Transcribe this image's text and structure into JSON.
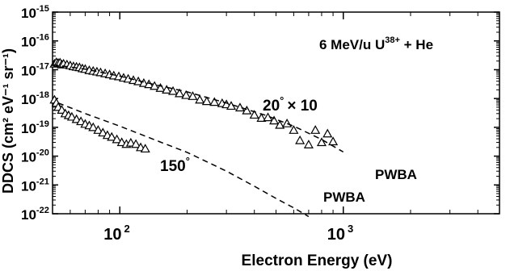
{
  "chart_data": {
    "type": "scatter",
    "title": "",
    "xlabel": "Electron Energy (eV)",
    "ylabel": "DDCS (cm² eV⁻¹ sr⁻¹)",
    "x_scale": "log",
    "y_scale": "log",
    "xlim": [
      50,
      5000
    ],
    "ylim": [
      1e-22,
      1e-15
    ],
    "x_ticks": [
      {
        "value": 100,
        "base": "10",
        "exp": "2"
      },
      {
        "value": 1000,
        "base": "10",
        "exp": "3"
      }
    ],
    "y_ticks": [
      {
        "value": 1e-15,
        "base": "10",
        "exp": "-15"
      },
      {
        "value": 1e-16,
        "base": "10",
        "exp": "-16"
      },
      {
        "value": 1e-17,
        "base": "10",
        "exp": "-17"
      },
      {
        "value": 1e-18,
        "base": "10",
        "exp": "-18"
      },
      {
        "value": 1e-19,
        "base": "10",
        "exp": "-19"
      },
      {
        "value": 1e-20,
        "base": "10",
        "exp": "-20"
      },
      {
        "value": 1e-21,
        "base": "10",
        "exp": "-21"
      },
      {
        "value": 1e-22,
        "base": "10",
        "exp": "-22"
      }
    ],
    "annotations": {
      "system_prefix": "6 MeV/u U",
      "system_charge": "38+",
      "system_suffix": " + He",
      "label_20": "20",
      "label_20_suffix": "× 10",
      "label_150": "150",
      "degree_mark": "°",
      "pwba_upper": "PWBA",
      "pwba_lower": "PWBA"
    },
    "series": [
      {
        "marker": "triangle",
        "x": [
          51,
          52,
          53,
          54,
          55,
          56,
          58,
          60,
          62,
          64,
          66,
          68,
          70,
          73,
          76,
          79,
          82,
          86,
          90,
          94,
          99,
          104,
          109,
          115,
          121,
          128,
          135,
          143,
          152,
          162,
          173,
          185,
          198,
          212,
          228,
          245,
          265,
          287,
          300,
          315,
          345,
          370,
          400,
          430,
          460,
          490,
          520,
          560,
          600,
          640,
          700,
          750,
          800,
          850,
          900
        ],
        "y": [
          1.6e-17,
          1.8e-17,
          1.7e-17,
          1.75e-17,
          1.5e-17,
          1.6e-17,
          1.5e-17,
          1.4e-17,
          1.3e-17,
          1.25e-17,
          1.2e-17,
          1.1e-17,
          1.05e-17,
          9.5e-18,
          9e-18,
          8.5e-18,
          8e-18,
          7.4e-18,
          6.8e-18,
          6.2e-18,
          5.8e-18,
          5.2e-18,
          4.8e-18,
          4.3e-18,
          3.9e-18,
          3.4e-18,
          3.1e-18,
          2.7e-18,
          2.3e-18,
          2e-18,
          1.8e-18,
          1.5e-18,
          1.3e-18,
          1.2e-18,
          9e-19,
          8e-19,
          7.5e-19,
          6.8e-19,
          6.2e-19,
          5.5e-19,
          4.8e-19,
          3.8e-19,
          2.7e-19,
          2.1e-19,
          2.2e-19,
          1.7e-19,
          1.2e-19,
          1.35e-19,
          8e-20,
          3.5e-20,
          2.5e-20,
          8e-20,
          3e-20,
          6e-20,
          3.2e-20
        ]
      },
      {
        "marker": "triangle",
        "x": [
          51,
          52,
          53,
          55,
          57,
          59,
          61,
          64,
          67,
          70,
          73,
          76,
          80,
          84,
          88,
          92,
          97,
          102,
          107,
          112,
          118,
          124,
          130
        ],
        "y": [
          9e-19,
          7e-19,
          5e-19,
          4e-19,
          3e-19,
          2.6e-19,
          2.3e-19,
          1.9e-19,
          1.6e-19,
          1.3e-19,
          1.15e-19,
          1e-19,
          8e-20,
          6.5e-20,
          5.3e-20,
          4.6e-20,
          3.8e-20,
          3e-20,
          2.6e-20,
          2.9e-20,
          2.6e-20,
          2e-20,
          1.8e-20
        ]
      },
      {
        "line": "dashed",
        "x": [
          50,
          70,
          100,
          150,
          200,
          300,
          450,
          600,
          800,
          1000
        ],
        "y": [
          1.5e-17,
          1.05e-17,
          6e-18,
          2.8e-18,
          1.7e-18,
          7e-19,
          2.6e-19,
          1.1e-19,
          3.8e-20,
          1.4e-20
        ]
      },
      {
        "line": "dashed",
        "x": [
          53,
          60,
          70,
          100,
          150,
          200,
          300,
          400,
          500,
          600,
          700
        ],
        "y": [
          7e-19,
          4.8e-19,
          3e-19,
          1.1e-19,
          3.2e-20,
          1.35e-20,
          3e-21,
          9e-22,
          3.4e-22,
          1.6e-22,
          8e-23
        ]
      }
    ]
  }
}
